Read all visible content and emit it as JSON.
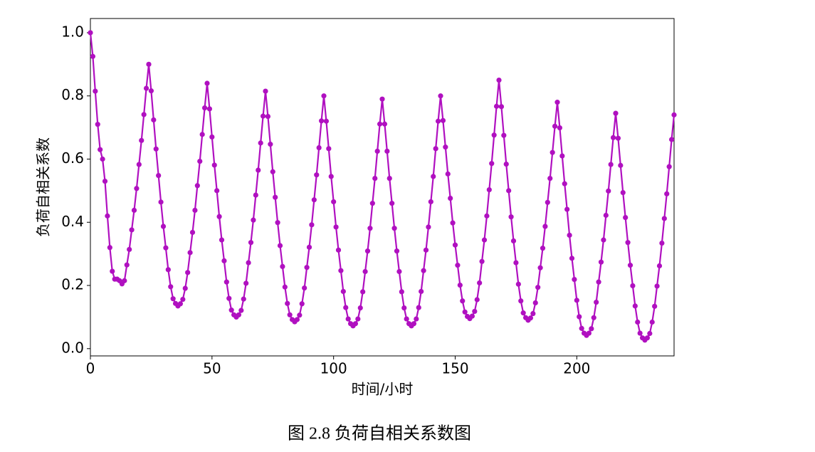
{
  "chart_data": {
    "type": "line",
    "y_label": "负荷自相关系数",
    "x_label": "时间/小时",
    "caption": "图 2.8  负荷自相关系数图",
    "color": "#b010c0",
    "xlim": [
      0,
      240
    ],
    "ylim": [
      -0.023,
      1.045
    ],
    "xticks": [
      0,
      50,
      100,
      150,
      200
    ],
    "yticks": [
      {
        "value": 0,
        "label": "0.0"
      },
      0.2,
      0.4,
      0.6,
      0.8,
      {
        "value": 1,
        "label": "1.0"
      }
    ],
    "x": [
      0,
      1,
      2,
      3,
      4,
      5,
      6,
      7,
      8,
      9,
      10,
      11,
      12,
      13,
      14,
      15,
      16,
      17,
      18,
      19,
      20,
      21,
      22,
      23,
      24,
      25,
      26,
      27,
      28,
      29,
      30,
      31,
      32,
      33,
      34,
      35,
      36,
      37,
      38,
      39,
      40,
      41,
      42,
      43,
      44,
      45,
      46,
      47,
      48,
      49,
      50,
      51,
      52,
      53,
      54,
      55,
      56,
      57,
      58,
      59,
      60,
      61,
      62,
      63,
      64,
      65,
      66,
      67,
      68,
      69,
      70,
      71,
      72,
      73,
      74,
      75,
      76,
      77,
      78,
      79,
      80,
      81,
      82,
      83,
      84,
      85,
      86,
      87,
      88,
      89,
      90,
      91,
      92,
      93,
      94,
      95,
      96,
      97,
      98,
      99,
      100,
      101,
      102,
      103,
      104,
      105,
      106,
      107,
      108,
      109,
      110,
      111,
      112,
      113,
      114,
      115,
      116,
      117,
      118,
      119,
      120,
      121,
      122,
      123,
      124,
      125,
      126,
      127,
      128,
      129,
      130,
      131,
      132,
      133,
      134,
      135,
      136,
      137,
      138,
      139,
      140,
      141,
      142,
      143,
      144,
      145,
      146,
      147,
      148,
      149,
      150,
      151,
      152,
      153,
      154,
      155,
      156,
      157,
      158,
      159,
      160,
      161,
      162,
      163,
      164,
      165,
      166,
      167,
      168,
      169,
      170,
      171,
      172,
      173,
      174,
      175,
      176,
      177,
      178,
      179,
      180,
      181,
      182,
      183,
      184,
      185,
      186,
      187,
      188,
      189,
      190,
      191,
      192,
      193,
      194,
      195,
      196,
      197,
      198,
      199,
      200,
      201,
      202,
      203,
      204,
      205,
      206,
      207,
      208,
      209,
      210,
      211,
      212,
      213,
      214,
      215,
      216,
      217,
      218,
      219,
      220,
      221,
      222,
      223,
      224,
      225,
      226,
      227,
      228,
      229,
      230,
      231,
      232,
      233,
      234,
      235,
      236,
      237,
      238,
      239,
      240
    ],
    "values": [
      1.0,
      0.925,
      0.815,
      0.71,
      0.63,
      0.6,
      0.53,
      0.42,
      0.32,
      0.245,
      0.22,
      0.22,
      0.215,
      0.205,
      0.215,
      0.265,
      0.314,
      0.376,
      0.438,
      0.507,
      0.583,
      0.659,
      0.741,
      0.824,
      0.9,
      0.816,
      0.724,
      0.632,
      0.548,
      0.464,
      0.387,
      0.319,
      0.25,
      0.196,
      0.158,
      0.143,
      0.135,
      0.142,
      0.156,
      0.191,
      0.241,
      0.304,
      0.368,
      0.438,
      0.516,
      0.593,
      0.678,
      0.762,
      0.84,
      0.759,
      0.67,
      0.581,
      0.5,
      0.418,
      0.344,
      0.278,
      0.211,
      0.159,
      0.122,
      0.107,
      0.1,
      0.107,
      0.121,
      0.157,
      0.207,
      0.272,
      0.336,
      0.407,
      0.486,
      0.565,
      0.651,
      0.736,
      0.815,
      0.735,
      0.647,
      0.56,
      0.479,
      0.399,
      0.326,
      0.26,
      0.195,
      0.143,
      0.107,
      0.092,
      0.085,
      0.092,
      0.106,
      0.142,
      0.192,
      0.257,
      0.321,
      0.392,
      0.471,
      0.55,
      0.636,
      0.721,
      0.8,
      0.72,
      0.633,
      0.545,
      0.465,
      0.385,
      0.312,
      0.247,
      0.181,
      0.13,
      0.094,
      0.079,
      0.072,
      0.079,
      0.094,
      0.129,
      0.18,
      0.244,
      0.309,
      0.381,
      0.46,
      0.539,
      0.625,
      0.711,
      0.79,
      0.711,
      0.625,
      0.539,
      0.46,
      0.381,
      0.309,
      0.244,
      0.18,
      0.129,
      0.094,
      0.079,
      0.072,
      0.079,
      0.094,
      0.13,
      0.181,
      0.247,
      0.312,
      0.385,
      0.465,
      0.545,
      0.633,
      0.72,
      0.8,
      0.722,
      0.638,
      0.553,
      0.476,
      0.398,
      0.328,
      0.264,
      0.201,
      0.151,
      0.116,
      0.102,
      0.095,
      0.103,
      0.118,
      0.155,
      0.208,
      0.276,
      0.344,
      0.42,
      0.503,
      0.586,
      0.676,
      0.767,
      0.85,
      0.766,
      0.675,
      0.584,
      0.5,
      0.417,
      0.341,
      0.272,
      0.204,
      0.151,
      0.113,
      0.098,
      0.09,
      0.097,
      0.111,
      0.145,
      0.194,
      0.256,
      0.318,
      0.387,
      0.463,
      0.539,
      0.621,
      0.704,
      0.78,
      0.699,
      0.61,
      0.522,
      0.441,
      0.359,
      0.286,
      0.219,
      0.153,
      0.101,
      0.064,
      0.049,
      0.042,
      0.049,
      0.063,
      0.098,
      0.147,
      0.211,
      0.274,
      0.344,
      0.422,
      0.499,
      0.583,
      0.668,
      0.745,
      0.666,
      0.58,
      0.494,
      0.415,
      0.336,
      0.264,
      0.199,
      0.135,
      0.084,
      0.049,
      0.034,
      0.027,
      0.034,
      0.048,
      0.084,
      0.134,
      0.198,
      0.262,
      0.334,
      0.412,
      0.49,
      0.576,
      0.662,
      0.74
    ]
  }
}
